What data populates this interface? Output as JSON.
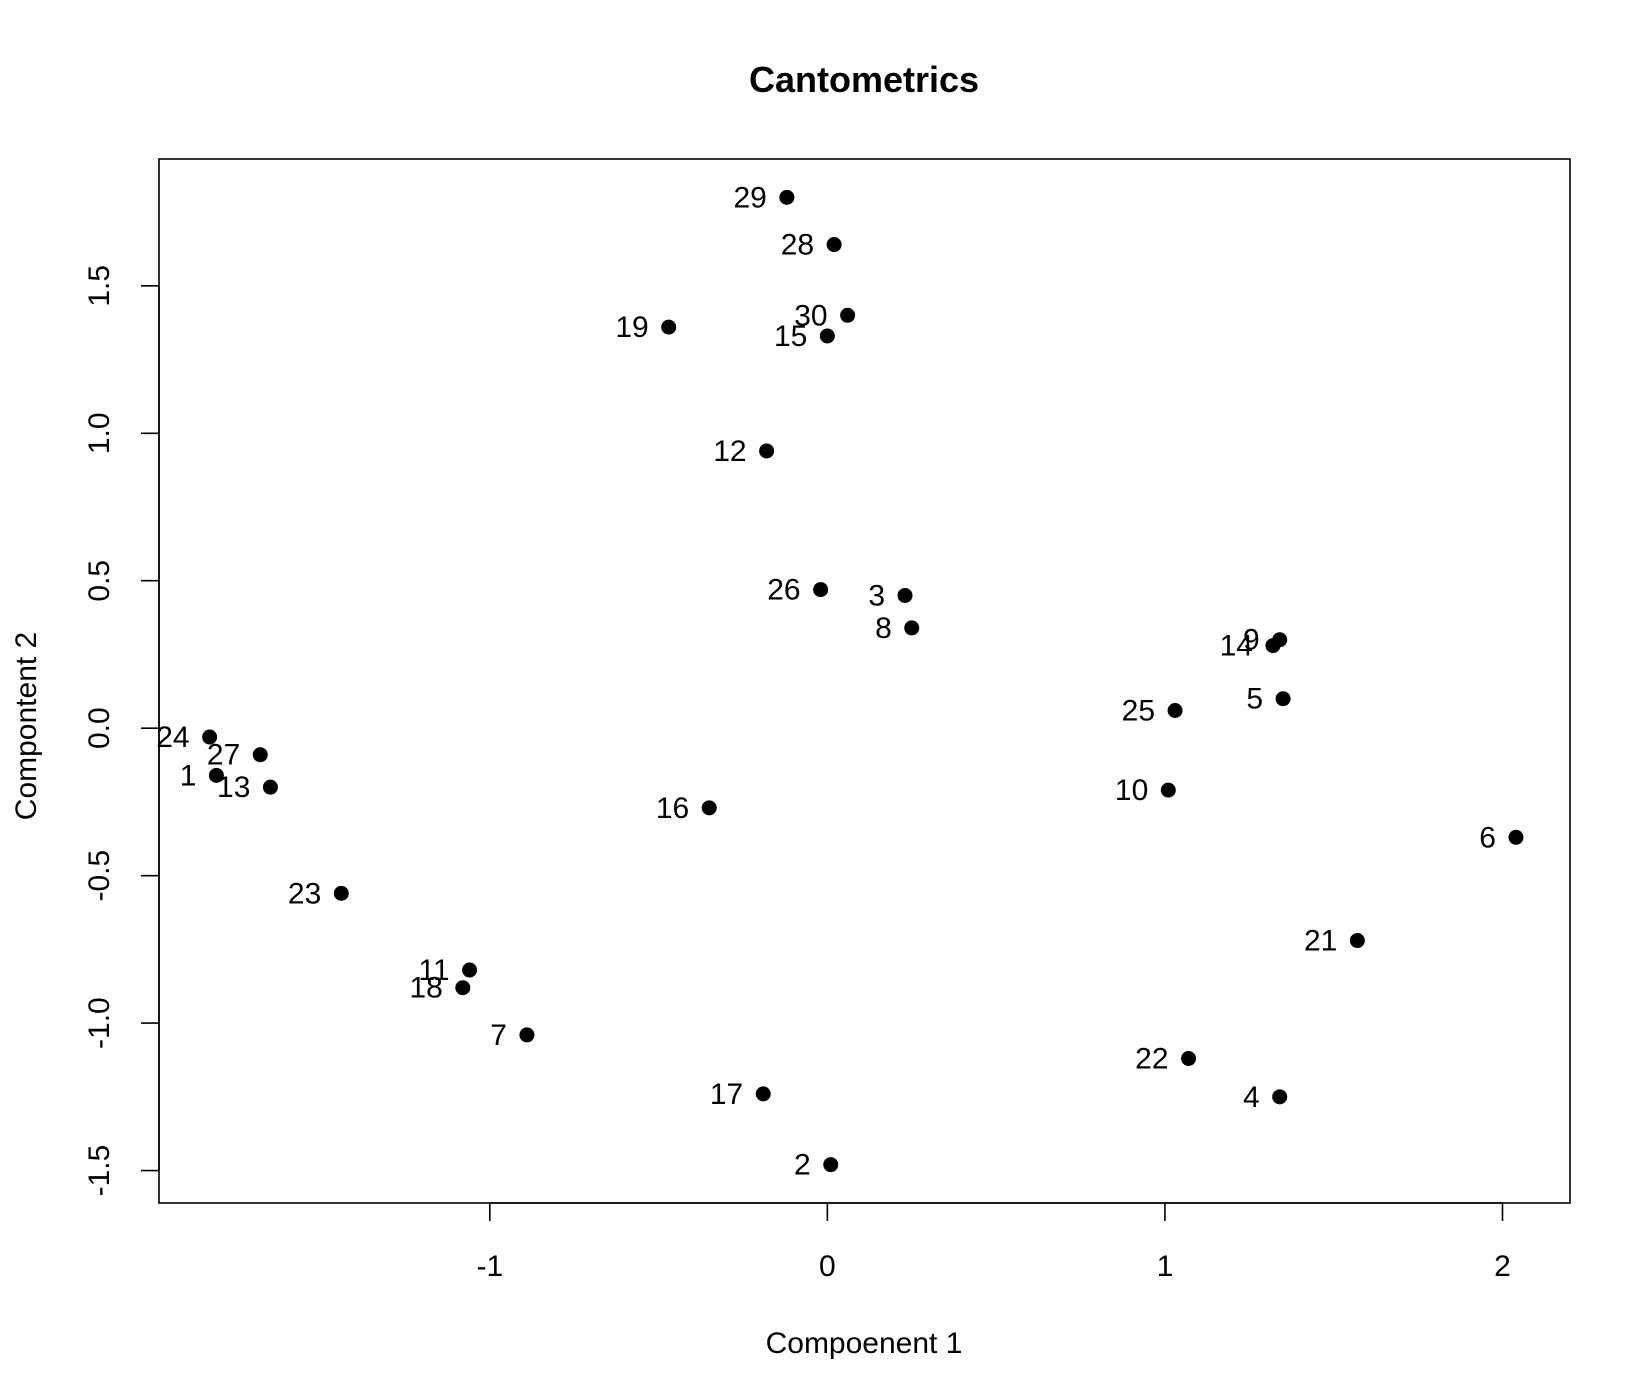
{
  "chart_data": {
    "type": "scatter",
    "title": "Cantometrics",
    "xlabel": "Compoenent 1",
    "ylabel": "Compontent 2",
    "xlim": [
      -1.98,
      2.2
    ],
    "ylim": [
      -1.61,
      1.93
    ],
    "xticks": [
      -1,
      0,
      1,
      2
    ],
    "xtick_labels": [
      "-1",
      "0",
      "1",
      "2"
    ],
    "yticks": [
      -1.5,
      -1.0,
      -0.5,
      0.0,
      0.5,
      1.0,
      1.5
    ],
    "ytick_labels": [
      "-1.5",
      "-1.0",
      "-0.5",
      "0.0",
      "0.5",
      "1.0",
      "1.5"
    ],
    "grid": false,
    "marker_color": "#000000",
    "points": [
      {
        "label": "1",
        "x": -1.81,
        "y": -0.16
      },
      {
        "label": "2",
        "x": 0.01,
        "y": -1.48
      },
      {
        "label": "3",
        "x": 0.23,
        "y": 0.45
      },
      {
        "label": "4",
        "x": 1.34,
        "y": -1.25
      },
      {
        "label": "5",
        "x": 1.35,
        "y": 0.1
      },
      {
        "label": "6",
        "x": 2.04,
        "y": -0.37
      },
      {
        "label": "7",
        "x": -0.89,
        "y": -1.04
      },
      {
        "label": "8",
        "x": 0.25,
        "y": 0.34
      },
      {
        "label": "9",
        "x": 1.34,
        "y": 0.3
      },
      {
        "label": "10",
        "x": 1.01,
        "y": -0.21
      },
      {
        "label": "11",
        "x": -1.06,
        "y": -0.82
      },
      {
        "label": "12",
        "x": -0.18,
        "y": 0.94
      },
      {
        "label": "13",
        "x": -1.65,
        "y": -0.2
      },
      {
        "label": "14",
        "x": 1.32,
        "y": 0.28
      },
      {
        "label": "15",
        "x": 0.0,
        "y": 1.33
      },
      {
        "label": "16",
        "x": -0.35,
        "y": -0.27
      },
      {
        "label": "17",
        "x": -0.19,
        "y": -1.24
      },
      {
        "label": "18",
        "x": -1.08,
        "y": -0.88
      },
      {
        "label": "19",
        "x": -0.47,
        "y": 1.36
      },
      {
        "label": "21",
        "x": 1.57,
        "y": -0.72
      },
      {
        "label": "22",
        "x": 1.07,
        "y": -1.12
      },
      {
        "label": "23",
        "x": -1.44,
        "y": -0.56
      },
      {
        "label": "24",
        "x": -1.83,
        "y": -0.03
      },
      {
        "label": "25",
        "x": 1.03,
        "y": 0.06
      },
      {
        "label": "26",
        "x": -0.02,
        "y": 0.47
      },
      {
        "label": "27",
        "x": -1.68,
        "y": -0.09
      },
      {
        "label": "28",
        "x": 0.02,
        "y": 1.64
      },
      {
        "label": "29",
        "x": -0.12,
        "y": 1.8
      },
      {
        "label": "30",
        "x": 0.06,
        "y": 1.4
      }
    ]
  }
}
